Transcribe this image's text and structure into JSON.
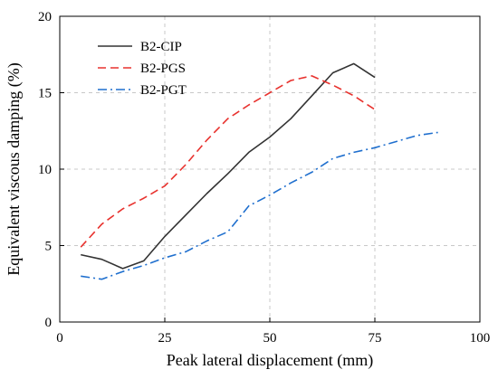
{
  "chart_data": {
    "type": "line",
    "title": "",
    "xlabel": "Peak lateral displacement (mm)",
    "ylabel": "Equivalent viscous damping (%)",
    "xlim": [
      0,
      100
    ],
    "ylim": [
      0,
      20
    ],
    "xticks": [
      0,
      25,
      50,
      75,
      100
    ],
    "yticks": [
      0,
      5,
      10,
      15,
      20
    ],
    "grid": true,
    "legend_position": "top-left",
    "series": [
      {
        "name": "B2-CIP",
        "color": "#333333",
        "line_style": "solid",
        "x": [
          5,
          10,
          15,
          20,
          25,
          30,
          35,
          40,
          45,
          50,
          55,
          60,
          65,
          70,
          75
        ],
        "y": [
          4.4,
          4.1,
          3.5,
          4.0,
          5.6,
          7.0,
          8.4,
          9.7,
          11.1,
          12.1,
          13.3,
          14.8,
          16.3,
          16.9,
          16.0
        ]
      },
      {
        "name": "B2-PGS",
        "color": "#e8322e",
        "line_style": "dashed",
        "x": [
          5,
          10,
          15,
          20,
          25,
          30,
          35,
          40,
          45,
          50,
          55,
          60,
          65,
          70,
          75
        ],
        "y": [
          4.9,
          6.4,
          7.4,
          8.1,
          8.9,
          10.3,
          11.9,
          13.3,
          14.2,
          15.0,
          15.8,
          16.1,
          15.5,
          14.8,
          13.9
        ]
      },
      {
        "name": "B2-PGT",
        "color": "#1f6fce",
        "line_style": "dash-dot",
        "x": [
          5,
          10,
          15,
          20,
          25,
          30,
          35,
          40,
          45,
          50,
          55,
          60,
          65,
          70,
          75,
          80,
          85,
          90
        ],
        "y": [
          3.0,
          2.8,
          3.3,
          3.7,
          4.2,
          4.6,
          5.3,
          5.9,
          7.6,
          8.3,
          9.1,
          9.8,
          10.7,
          11.1,
          11.4,
          11.8,
          12.2,
          12.4
        ]
      }
    ]
  }
}
